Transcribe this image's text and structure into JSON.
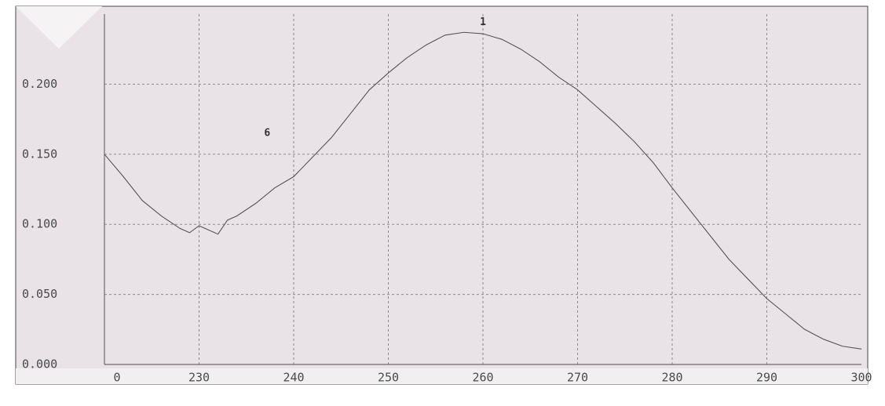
{
  "chart_data": {
    "type": "line",
    "x": [
      220,
      222,
      224,
      226,
      228,
      229,
      230,
      231,
      232,
      233,
      234,
      236,
      238,
      240,
      242,
      244,
      246,
      248,
      250,
      252,
      254,
      256,
      258,
      260,
      262,
      264,
      266,
      268,
      270,
      272,
      274,
      276,
      278,
      280,
      282,
      284,
      286,
      288,
      290,
      292,
      294,
      296,
      298,
      300
    ],
    "series": [
      {
        "color": "#555555",
        "values": [
          0.15,
          0.134,
          0.117,
          0.106,
          0.097,
          0.094,
          0.099,
          0.096,
          0.093,
          0.103,
          0.106,
          0.115,
          0.126,
          0.134,
          0.148,
          0.162,
          0.179,
          0.196,
          0.208,
          0.219,
          0.228,
          0.235,
          0.237,
          0.236,
          0.232,
          0.225,
          0.216,
          0.205,
          0.196,
          0.184,
          0.172,
          0.159,
          0.144,
          0.126,
          0.109,
          0.092,
          0.075,
          0.061,
          0.047,
          0.036,
          0.025,
          0.018,
          0.013,
          0.011
        ]
      }
    ],
    "xlim": [
      220,
      300
    ],
    "xticks": [
      {
        "value": 220,
        "label": "0"
      },
      230,
      240,
      250,
      260,
      270,
      280,
      290,
      300
    ],
    "ylim": [
      0,
      0.25
    ],
    "yticks": [
      {
        "value": 0,
        "label": "0.000"
      },
      {
        "value": 0.05,
        "label": "0.050"
      },
      {
        "value": 0.1,
        "label": "0.100"
      },
      {
        "value": 0.15,
        "label": "0.150"
      },
      {
        "value": 0.2,
        "label": "0.200"
      }
    ],
    "grid": true,
    "annotations": [
      {
        "text": "1",
        "x": 260,
        "y": 0.244
      },
      {
        "text": "6",
        "x": 237.2,
        "y": 0.165
      }
    ]
  }
}
